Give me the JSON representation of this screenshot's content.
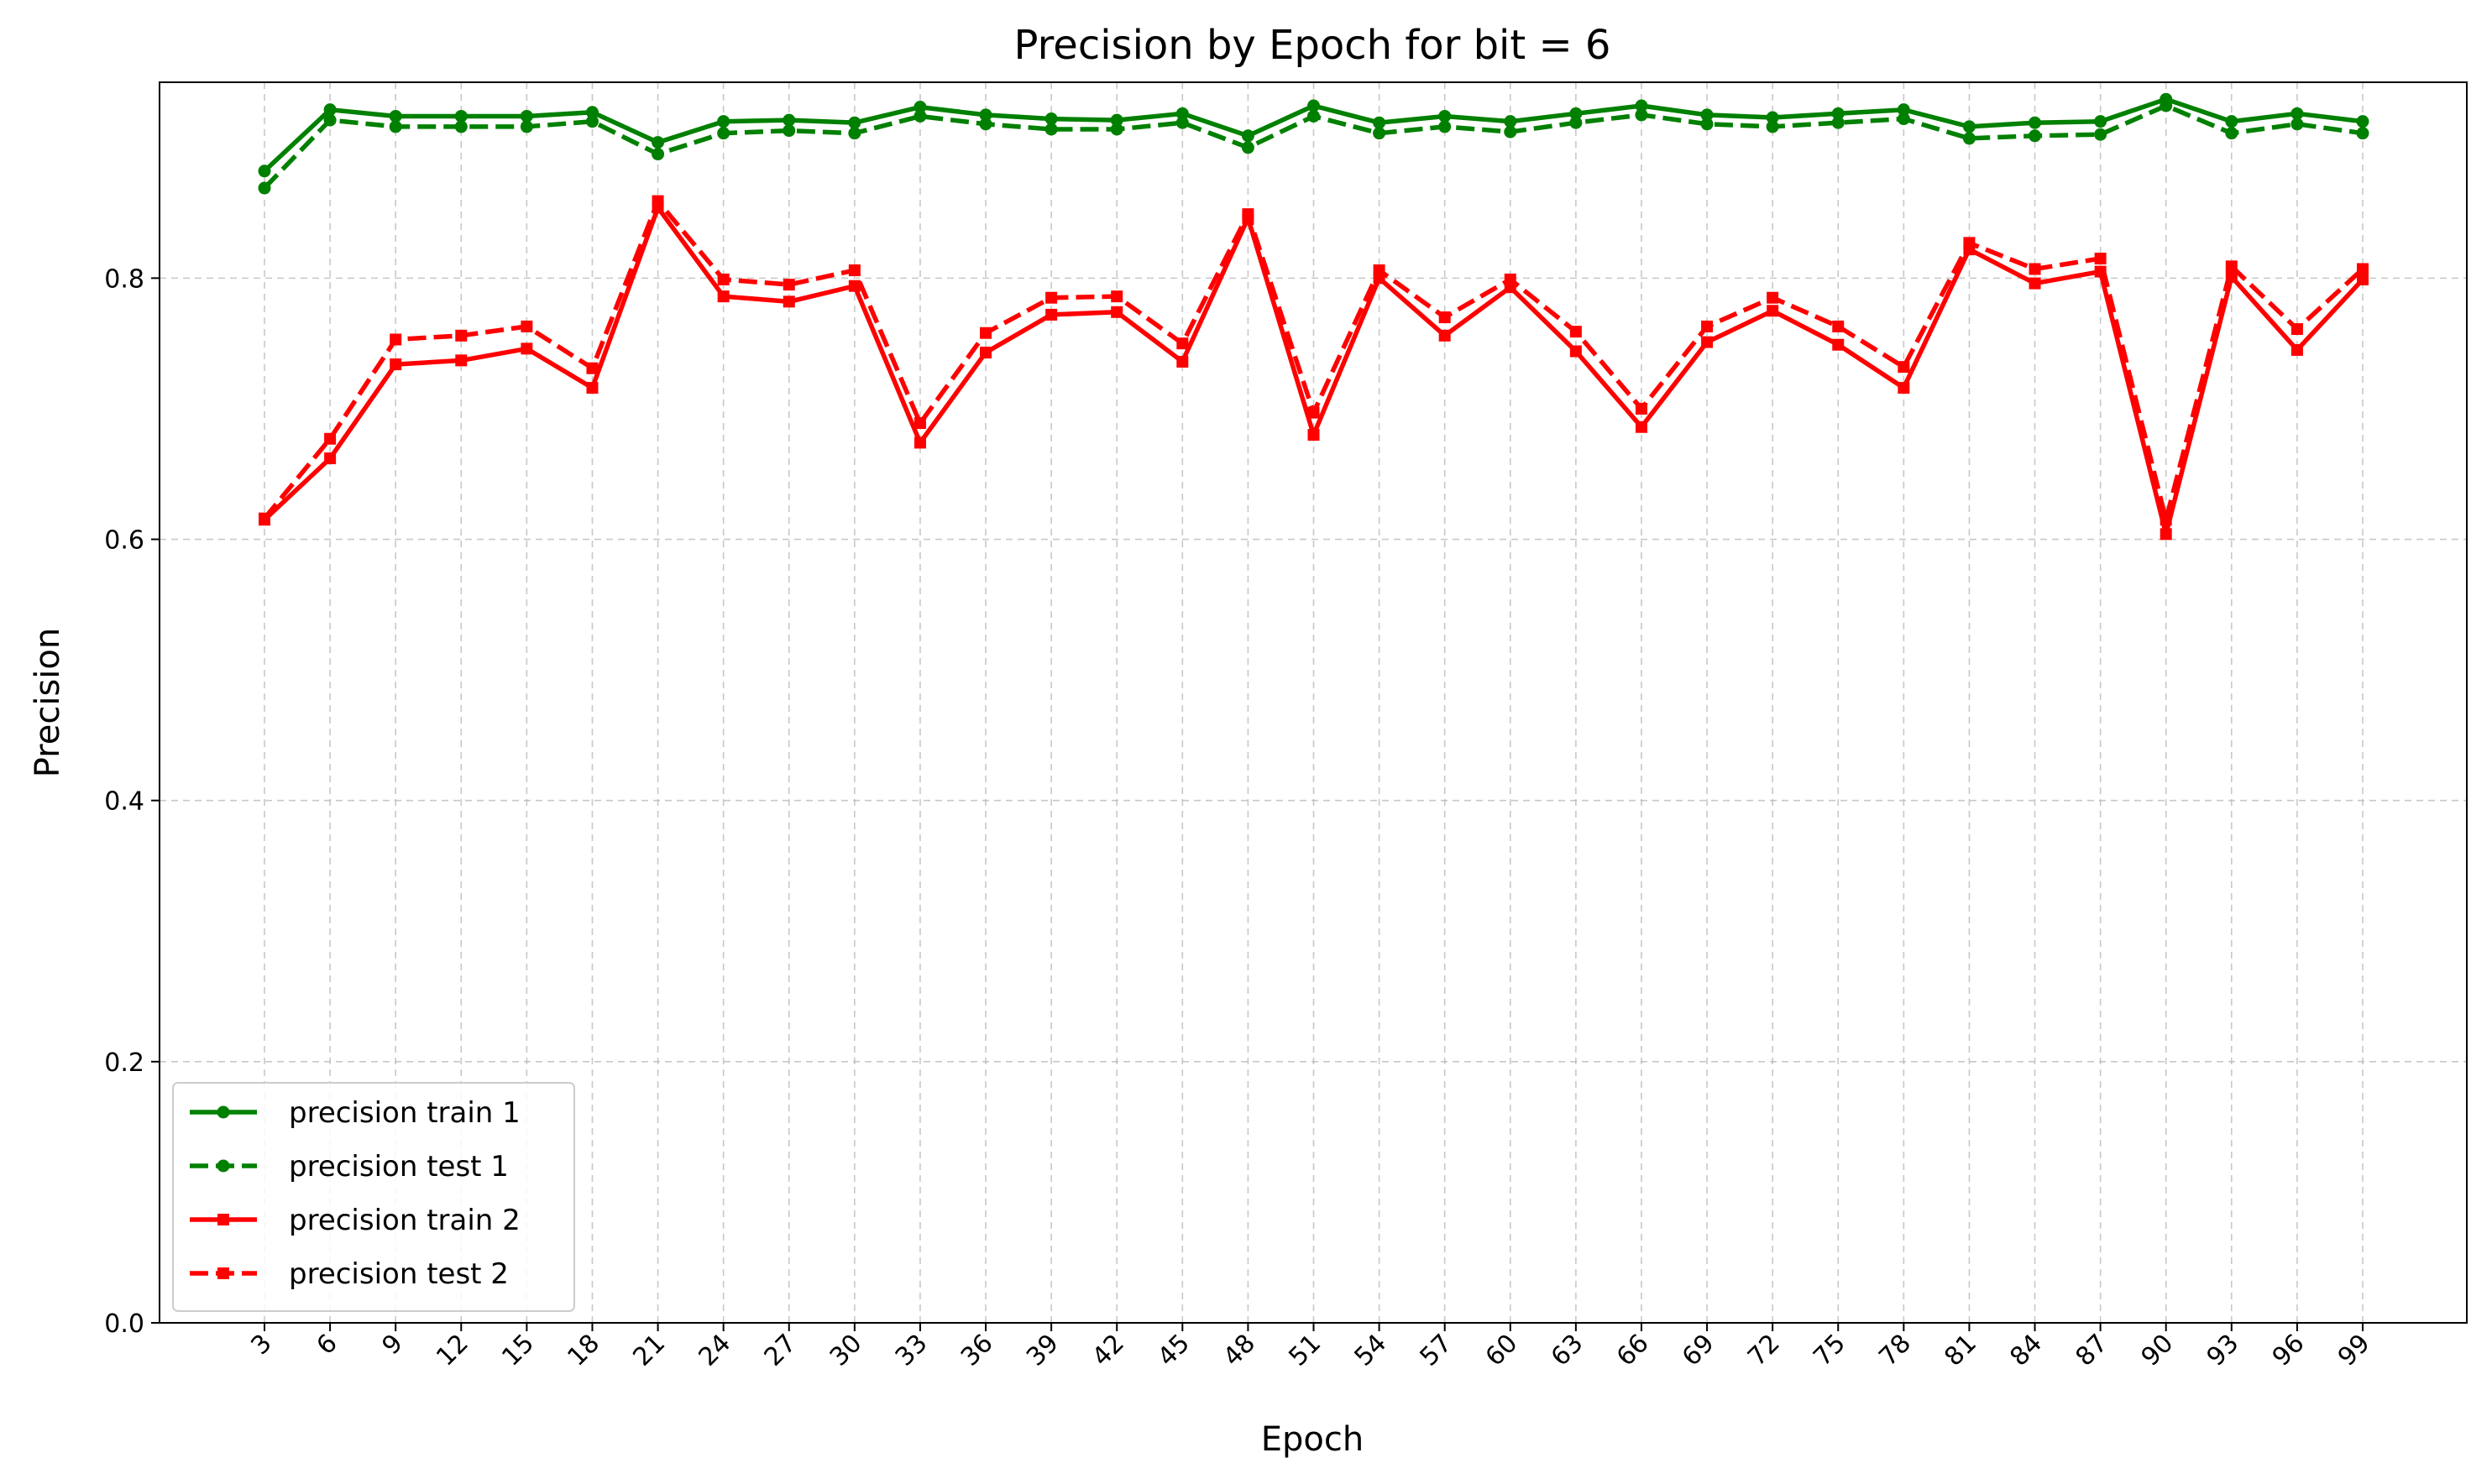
{
  "chart_data": {
    "type": "line",
    "title": "Precision by Epoch for bit = 6",
    "xlabel": "Epoch",
    "ylabel": "Precision",
    "ylim": [
      0,
      0.95
    ],
    "yticks": [
      0.0,
      0.2,
      0.4,
      0.6,
      0.8
    ],
    "ytick_labels": [
      "0.0",
      "0.2",
      "0.4",
      "0.6",
      "0.8"
    ],
    "grid": true,
    "legend_position": "lower-left",
    "x": [
      "3",
      "6",
      "9",
      "12",
      "15",
      "18",
      "21",
      "24",
      "27",
      "30",
      "33",
      "36",
      "39",
      "42",
      "45",
      "48",
      "51",
      "54",
      "57",
      "60",
      "63",
      "66",
      "69",
      "72",
      "75",
      "78",
      "81",
      "84",
      "87",
      "90",
      "93",
      "96",
      "99"
    ],
    "series": [
      {
        "name": "precision train 1",
        "color": "#008000",
        "linestyle": "solid",
        "marker": "circle",
        "values": [
          0.882,
          0.929,
          0.924,
          0.924,
          0.924,
          0.927,
          0.904,
          0.92,
          0.921,
          0.919,
          0.931,
          0.925,
          0.922,
          0.921,
          0.926,
          0.909,
          0.932,
          0.919,
          0.924,
          0.92,
          0.926,
          0.932,
          0.925,
          0.923,
          0.926,
          0.929,
          0.916,
          0.919,
          0.92,
          0.937,
          0.92,
          0.926,
          0.92
        ]
      },
      {
        "name": "precision test 1",
        "color": "#008000",
        "linestyle": "dashed",
        "marker": "circle",
        "values": [
          0.869,
          0.921,
          0.916,
          0.916,
          0.916,
          0.92,
          0.895,
          0.911,
          0.913,
          0.911,
          0.924,
          0.918,
          0.914,
          0.914,
          0.919,
          0.9,
          0.924,
          0.911,
          0.916,
          0.912,
          0.919,
          0.925,
          0.918,
          0.916,
          0.919,
          0.922,
          0.907,
          0.909,
          0.91,
          0.932,
          0.911,
          0.918,
          0.911
        ]
      },
      {
        "name": "precision train 2",
        "color": "#ff0000",
        "linestyle": "solid",
        "marker": "square",
        "values": [
          0.615,
          0.662,
          0.734,
          0.737,
          0.746,
          0.716,
          0.854,
          0.786,
          0.782,
          0.794,
          0.674,
          0.743,
          0.772,
          0.774,
          0.736,
          0.846,
          0.68,
          0.8,
          0.756,
          0.793,
          0.744,
          0.686,
          0.751,
          0.775,
          0.749,
          0.716,
          0.822,
          0.796,
          0.805,
          0.604,
          0.801,
          0.745,
          0.799
        ]
      },
      {
        "name": "precision test 2",
        "color": "#ff0000",
        "linestyle": "dashed",
        "marker": "square",
        "values": [
          0.616,
          0.677,
          0.753,
          0.756,
          0.763,
          0.731,
          0.859,
          0.799,
          0.795,
          0.806,
          0.689,
          0.758,
          0.785,
          0.786,
          0.75,
          0.849,
          0.697,
          0.806,
          0.77,
          0.799,
          0.759,
          0.7,
          0.763,
          0.785,
          0.763,
          0.732,
          0.827,
          0.807,
          0.815,
          0.615,
          0.809,
          0.761,
          0.807
        ]
      }
    ]
  }
}
